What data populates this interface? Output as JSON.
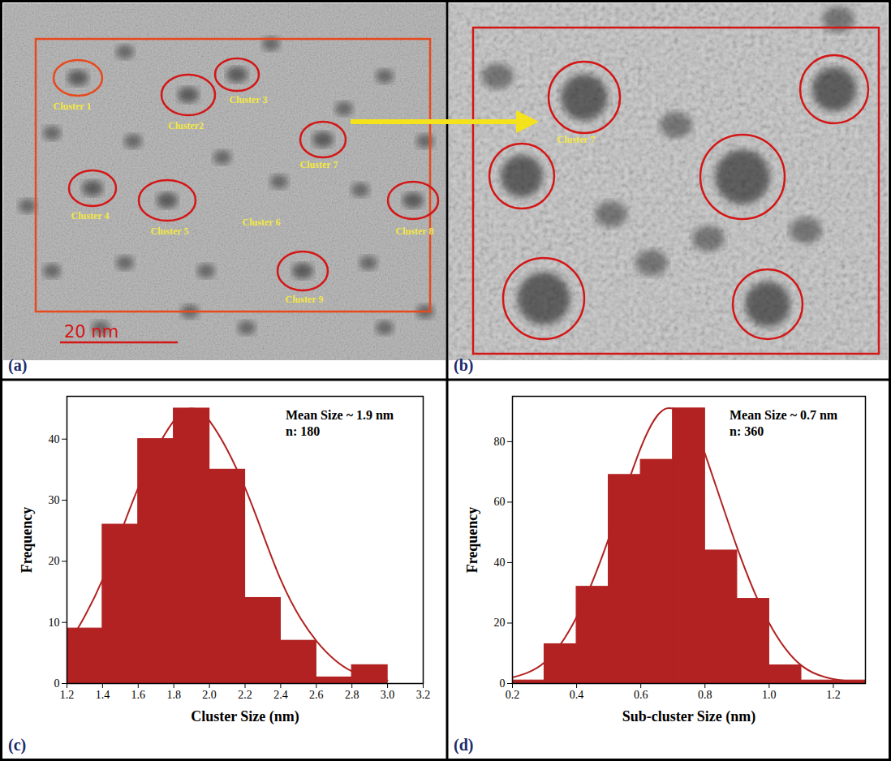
{
  "figure": {
    "panels": [
      {
        "letter": "(a)",
        "kind": "micrograph",
        "labels": [
          "Cluster 1",
          "Cluster2",
          "Cluster 3",
          "Cluster 4",
          "Cluster 5",
          "Cluster 6",
          "Cluster 7",
          "Cluster 8",
          "Cluster 9"
        ],
        "scale_bar": "20 nm"
      },
      {
        "letter": "(b)",
        "kind": "micrograph",
        "labels": [
          "Cluster 7"
        ]
      }
    ]
  },
  "chart_data": [
    {
      "letter": "(c)",
      "type": "histogram",
      "x_label": "Cluster Size (nm)",
      "y_label": "Frequency",
      "annotations": [
        "Mean Size ~ 1.9 nm",
        "n: 180"
      ],
      "bins": [
        1.2,
        1.4,
        1.6,
        1.8,
        2.0,
        2.2,
        2.4,
        2.6,
        2.8,
        3.0
      ],
      "values": [
        9,
        26,
        40,
        45,
        35,
        14,
        7,
        1,
        3
      ],
      "fit": {
        "x": [
          1.2,
          1.4,
          1.6,
          1.8,
          1.9,
          2.0,
          2.2,
          2.4,
          2.6,
          2.8,
          3.0
        ],
        "y": [
          6,
          17,
          32,
          43,
          45,
          43,
          32,
          17,
          7,
          2,
          0.5
        ]
      },
      "color": "#b22222",
      "xlim": [
        1.2,
        3.2
      ],
      "xticks": [
        1.2,
        1.4,
        1.6,
        1.8,
        {
          "value": 2,
          "label": "2.0"
        },
        2.2,
        2.4,
        2.6,
        2.8,
        {
          "value": 3,
          "label": "3.0"
        },
        3.2
      ],
      "ylim": [
        0,
        47
      ],
      "yticks": [
        0,
        10,
        20,
        30,
        40
      ]
    },
    {
      "letter": "(d)",
      "type": "histogram",
      "x_label": "Sub-cluster Size (nm)",
      "y_label": "Frequency",
      "annotations": [
        "Mean Size ~ 0.7 nm",
        "n: 360"
      ],
      "bins": [
        0.2,
        0.3,
        0.4,
        0.5,
        0.6,
        0.7,
        0.8,
        0.9,
        1.0,
        1.1,
        1.2,
        1.3
      ],
      "values": [
        1,
        13,
        32,
        69,
        74,
        91,
        44,
        28,
        6,
        1,
        1
      ],
      "fit": {
        "x": [
          0.2,
          0.3,
          0.4,
          0.5,
          0.6,
          0.68,
          0.75,
          0.8,
          0.9,
          1.0,
          1.1,
          1.2,
          1.3
        ],
        "y": [
          2,
          7,
          22,
          48,
          78,
          91,
          87,
          76,
          45,
          20,
          6,
          1.5,
          0.3
        ]
      },
      "color": "#b22222",
      "xlim": [
        0.2,
        1.3
      ],
      "xticks": [
        0.2,
        0.4,
        0.6,
        0.8,
        {
          "value": 1,
          "label": "1.0"
        },
        1.2
      ],
      "ylim": [
        0,
        95
      ],
      "yticks": [
        0,
        20,
        40,
        60,
        80
      ]
    }
  ]
}
